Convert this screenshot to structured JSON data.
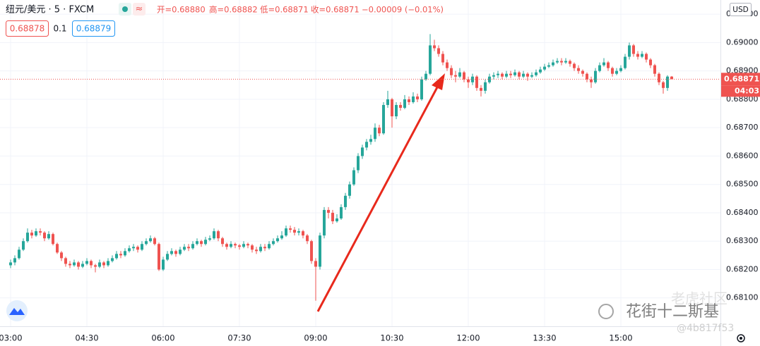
{
  "chart_data": {
    "type": "candlestick",
    "legend": {
      "symbol": "纽元/美元 · 5 · FXCM",
      "open": "开=0.68880",
      "high": "高=0.68882",
      "low": "低=0.68871",
      "close": "收=0.68871",
      "change": "−0.00009 (−0.01%)",
      "bid": "0.68878",
      "spread": "0.1",
      "ask": "0.68879"
    },
    "currency": "USD",
    "countdown": "04:03",
    "watermark": {
      "community": "老虎社区",
      "author": "花街十二斯基",
      "id": "@4b817f53"
    },
    "up_color": "#26a69a",
    "down_color": "#ef5350",
    "grid": true,
    "ylim": [
      0.68,
      0.6915
    ],
    "yticks": [
      {
        "value": 0.681,
        "label": "0.68100"
      },
      {
        "value": 0.682,
        "label": "0.68200"
      },
      {
        "value": 0.683,
        "label": "0.68300"
      },
      {
        "value": 0.684,
        "label": "0.68400"
      },
      {
        "value": 0.685,
        "label": "0.68500"
      },
      {
        "value": 0.686,
        "label": "0.68600"
      },
      {
        "value": 0.687,
        "label": "0.68700"
      },
      {
        "value": 0.688,
        "label": "0.68800"
      },
      {
        "value": 0.689,
        "label": "0.68900"
      },
      {
        "value": 0.69,
        "label": "0.69000"
      },
      {
        "value": 0.691,
        "label": "0.69100"
      }
    ],
    "categories": [
      "03:00",
      null,
      null,
      null,
      null,
      null,
      null,
      null,
      null,
      null,
      null,
      null,
      null,
      null,
      null,
      null,
      null,
      null,
      "04:30",
      null,
      null,
      null,
      null,
      null,
      null,
      null,
      null,
      null,
      null,
      null,
      null,
      null,
      null,
      null,
      null,
      null,
      "06:00",
      null,
      null,
      null,
      null,
      null,
      null,
      null,
      null,
      null,
      null,
      null,
      null,
      null,
      null,
      null,
      null,
      null,
      "07:30",
      null,
      null,
      null,
      null,
      null,
      null,
      null,
      null,
      null,
      null,
      null,
      null,
      null,
      null,
      null,
      null,
      null,
      "09:00",
      null,
      null,
      null,
      null,
      null,
      null,
      null,
      null,
      null,
      null,
      null,
      null,
      null,
      null,
      null,
      null,
      null,
      "10:30",
      null,
      null,
      null,
      null,
      null,
      null,
      null,
      null,
      null,
      null,
      null,
      null,
      null,
      null,
      null,
      null,
      null,
      "12:00",
      null,
      null,
      null,
      null,
      null,
      null,
      null,
      null,
      null,
      null,
      null,
      null,
      null,
      null,
      null,
      null,
      null,
      "13:30",
      null,
      null,
      null,
      null,
      null,
      null,
      null,
      null,
      null,
      null,
      null,
      null,
      null,
      null,
      null,
      null,
      null,
      "15:00",
      null,
      null,
      null,
      null,
      null,
      null,
      null,
      null,
      null,
      null,
      null,
      null
    ],
    "open": [
      0.68215,
      0.68225,
      0.6824,
      0.6827,
      0.683,
      0.6833,
      0.6832,
      0.68335,
      0.6833,
      0.6831,
      0.68325,
      0.6829,
      0.6826,
      0.6824,
      0.6822,
      0.68215,
      0.68225,
      0.6821,
      0.6822,
      0.6823,
      0.68215,
      0.6821,
      0.68225,
      0.68215,
      0.6823,
      0.6824,
      0.68255,
      0.6825,
      0.68265,
      0.68275,
      0.6828,
      0.6827,
      0.6829,
      0.683,
      0.6831,
      0.6829,
      0.682,
      0.68235,
      0.68255,
      0.68265,
      0.68255,
      0.6827,
      0.6828,
      0.68275,
      0.6829,
      0.683,
      0.6829,
      0.68305,
      0.6831,
      0.68335,
      0.6831,
      0.6829,
      0.6828,
      0.6829,
      0.68285,
      0.6828,
      0.6829,
      0.68285,
      0.6827,
      0.68265,
      0.6828,
      0.68275,
      0.6829,
      0.683,
      0.6831,
      0.6832,
      0.68345,
      0.6834,
      0.6833,
      0.68335,
      0.6832,
      0.683,
      0.6823,
      0.6821,
      0.6832,
      0.6841,
      0.684,
      0.6837,
      0.6838,
      0.6842,
      0.6846,
      0.685,
      0.6855,
      0.686,
      0.6863,
      0.6865,
      0.6866,
      0.687,
      0.6868,
      0.6878,
      0.688,
      0.6874,
      0.6878,
      0.6877,
      0.688,
      0.6879,
      0.6881,
      0.688,
      0.6887,
      0.6889,
      0.6899,
      0.6898,
      0.6896,
      0.6893,
      0.6891,
      0.68885,
      0.6888,
      0.68895,
      0.6887,
      0.6886,
      0.6888,
      0.6884,
      0.6883,
      0.6886,
      0.6888,
      0.68885,
      0.6889,
      0.6888,
      0.6889,
      0.68885,
      0.68895,
      0.6888,
      0.6889,
      0.6888,
      0.68885,
      0.68895,
      0.68905,
      0.68915,
      0.6892,
      0.6893,
      0.68935,
      0.6893,
      0.68935,
      0.68925,
      0.6891,
      0.689,
      0.6889,
      0.6887,
      0.6886,
      0.689,
      0.6892,
      0.6893,
      0.6891,
      0.6889,
      0.689,
      0.6891,
      0.6895,
      0.6899,
      0.6896,
      0.6895,
      0.6896,
      0.6894,
      0.6892,
      0.6889,
      0.6886,
      0.6884,
      0.6888
    ],
    "high": [
      0.68235,
      0.6825,
      0.6828,
      0.6831,
      0.68345,
      0.6834,
      0.68345,
      0.68345,
      0.68335,
      0.68335,
      0.6833,
      0.68295,
      0.68265,
      0.68245,
      0.6823,
      0.68235,
      0.6823,
      0.6823,
      0.6824,
      0.68235,
      0.6822,
      0.68235,
      0.6823,
      0.6824,
      0.6825,
      0.68265,
      0.68265,
      0.68275,
      0.68285,
      0.6829,
      0.68285,
      0.683,
      0.6831,
      0.6832,
      0.68315,
      0.68295,
      0.68245,
      0.68265,
      0.68275,
      0.6827,
      0.6828,
      0.6829,
      0.6829,
      0.683,
      0.6831,
      0.68305,
      0.68315,
      0.6832,
      0.68345,
      0.6834,
      0.68315,
      0.68295,
      0.683,
      0.68295,
      0.6829,
      0.683,
      0.68295,
      0.6829,
      0.6828,
      0.6829,
      0.6829,
      0.683,
      0.6831,
      0.6832,
      0.68335,
      0.68355,
      0.68355,
      0.6835,
      0.68345,
      0.6834,
      0.68325,
      0.68305,
      0.6824,
      0.6833,
      0.6842,
      0.6842,
      0.6841,
      0.68395,
      0.6843,
      0.6847,
      0.6851,
      0.6856,
      0.6861,
      0.6864,
      0.6866,
      0.68675,
      0.68715,
      0.6871,
      0.6879,
      0.6883,
      0.68805,
      0.6879,
      0.6879,
      0.68815,
      0.6881,
      0.68825,
      0.6882,
      0.6888,
      0.689,
      0.6903,
      0.6901,
      0.6899,
      0.6897,
      0.6894,
      0.6892,
      0.689,
      0.6891,
      0.689,
      0.6888,
      0.6889,
      0.68885,
      0.6885,
      0.6887,
      0.6889,
      0.68895,
      0.689,
      0.68895,
      0.689,
      0.689,
      0.68905,
      0.689,
      0.689,
      0.68895,
      0.68895,
      0.68905,
      0.68915,
      0.68925,
      0.6893,
      0.6894,
      0.68945,
      0.68945,
      0.68945,
      0.6894,
      0.6893,
      0.6892,
      0.68905,
      0.68895,
      0.6888,
      0.6891,
      0.6893,
      0.68945,
      0.68935,
      0.68915,
      0.6891,
      0.6892,
      0.6896,
      0.69,
      0.68995,
      0.6897,
      0.6897,
      0.68965,
      0.68945,
      0.68925,
      0.68895,
      0.68865,
      0.68885,
      0.68882
    ],
    "low": [
      0.68205,
      0.68215,
      0.68235,
      0.68265,
      0.68295,
      0.6831,
      0.68315,
      0.6832,
      0.683,
      0.68305,
      0.68285,
      0.68255,
      0.6823,
      0.6821,
      0.68205,
      0.6821,
      0.682,
      0.68205,
      0.68215,
      0.68205,
      0.6819,
      0.68205,
      0.68205,
      0.6821,
      0.68225,
      0.68235,
      0.6824,
      0.68245,
      0.6826,
      0.68265,
      0.6826,
      0.68265,
      0.68285,
      0.68295,
      0.68285,
      0.68195,
      0.68195,
      0.6823,
      0.6825,
      0.68245,
      0.6825,
      0.68265,
      0.68265,
      0.6827,
      0.68285,
      0.6828,
      0.68285,
      0.683,
      0.68305,
      0.683,
      0.6828,
      0.6827,
      0.68275,
      0.68275,
      0.6827,
      0.68275,
      0.68275,
      0.6826,
      0.68255,
      0.6826,
      0.68265,
      0.6827,
      0.68285,
      0.68295,
      0.68305,
      0.68315,
      0.6833,
      0.6832,
      0.6832,
      0.6831,
      0.6829,
      0.6822,
      0.6809,
      0.682,
      0.6831,
      0.6838,
      0.6836,
      0.68365,
      0.68375,
      0.6841,
      0.6845,
      0.68495,
      0.6854,
      0.6859,
      0.6862,
      0.6864,
      0.6865,
      0.6867,
      0.68675,
      0.6877,
      0.687,
      0.6873,
      0.6876,
      0.68765,
      0.6878,
      0.68785,
      0.6879,
      0.68795,
      0.68865,
      0.68885,
      0.6897,
      0.6895,
      0.6892,
      0.689,
      0.68875,
      0.6886,
      0.68875,
      0.6886,
      0.6884,
      0.6885,
      0.6883,
      0.6881,
      0.6882,
      0.68855,
      0.6887,
      0.68875,
      0.6887,
      0.68875,
      0.68875,
      0.6888,
      0.6887,
      0.68875,
      0.68865,
      0.68875,
      0.6888,
      0.6889,
      0.689,
      0.6891,
      0.68915,
      0.68925,
      0.6892,
      0.68925,
      0.68915,
      0.689,
      0.6889,
      0.6888,
      0.6886,
      0.6884,
      0.68855,
      0.68895,
      0.68915,
      0.689,
      0.6888,
      0.68885,
      0.68895,
      0.68905,
      0.6894,
      0.6895,
      0.6894,
      0.68945,
      0.6893,
      0.6891,
      0.6888,
      0.6885,
      0.6882,
      0.6883,
      0.68871
    ],
    "close": [
      0.68225,
      0.6824,
      0.6827,
      0.683,
      0.6833,
      0.6832,
      0.68335,
      0.6833,
      0.6831,
      0.68325,
      0.6829,
      0.6826,
      0.6824,
      0.6822,
      0.68215,
      0.68225,
      0.6821,
      0.6822,
      0.6823,
      0.68215,
      0.6821,
      0.68225,
      0.68215,
      0.6823,
      0.6824,
      0.68255,
      0.6825,
      0.68265,
      0.68275,
      0.6828,
      0.6827,
      0.6829,
      0.683,
      0.6831,
      0.6829,
      0.682,
      0.68235,
      0.68255,
      0.68265,
      0.68255,
      0.6827,
      0.6828,
      0.68275,
      0.6829,
      0.683,
      0.6829,
      0.68305,
      0.6831,
      0.68335,
      0.6831,
      0.6829,
      0.6828,
      0.6829,
      0.68285,
      0.6828,
      0.6829,
      0.68285,
      0.6827,
      0.68265,
      0.6828,
      0.68275,
      0.6829,
      0.683,
      0.6831,
      0.6832,
      0.68345,
      0.6834,
      0.6833,
      0.68335,
      0.6832,
      0.683,
      0.6823,
      0.6821,
      0.6832,
      0.6841,
      0.684,
      0.6837,
      0.6838,
      0.6842,
      0.6846,
      0.685,
      0.6855,
      0.686,
      0.6863,
      0.6865,
      0.6866,
      0.687,
      0.6868,
      0.6878,
      0.688,
      0.6874,
      0.6878,
      0.6877,
      0.688,
      0.6879,
      0.6881,
      0.688,
      0.6887,
      0.6889,
      0.6899,
      0.6898,
      0.6896,
      0.6893,
      0.6891,
      0.68885,
      0.6888,
      0.68895,
      0.6887,
      0.6886,
      0.6888,
      0.6884,
      0.6883,
      0.6886,
      0.6888,
      0.68885,
      0.6889,
      0.6888,
      0.6889,
      0.68885,
      0.68895,
      0.6888,
      0.6889,
      0.6888,
      0.68885,
      0.68895,
      0.68905,
      0.68915,
      0.6892,
      0.6893,
      0.68935,
      0.6893,
      0.68935,
      0.68925,
      0.6891,
      0.689,
      0.6889,
      0.6887,
      0.6886,
      0.689,
      0.6892,
      0.6893,
      0.6891,
      0.6889,
      0.689,
      0.6891,
      0.6895,
      0.6899,
      0.6896,
      0.6895,
      0.6896,
      0.6894,
      0.6892,
      0.6889,
      0.6886,
      0.6884,
      0.6888,
      0.68871
    ]
  }
}
